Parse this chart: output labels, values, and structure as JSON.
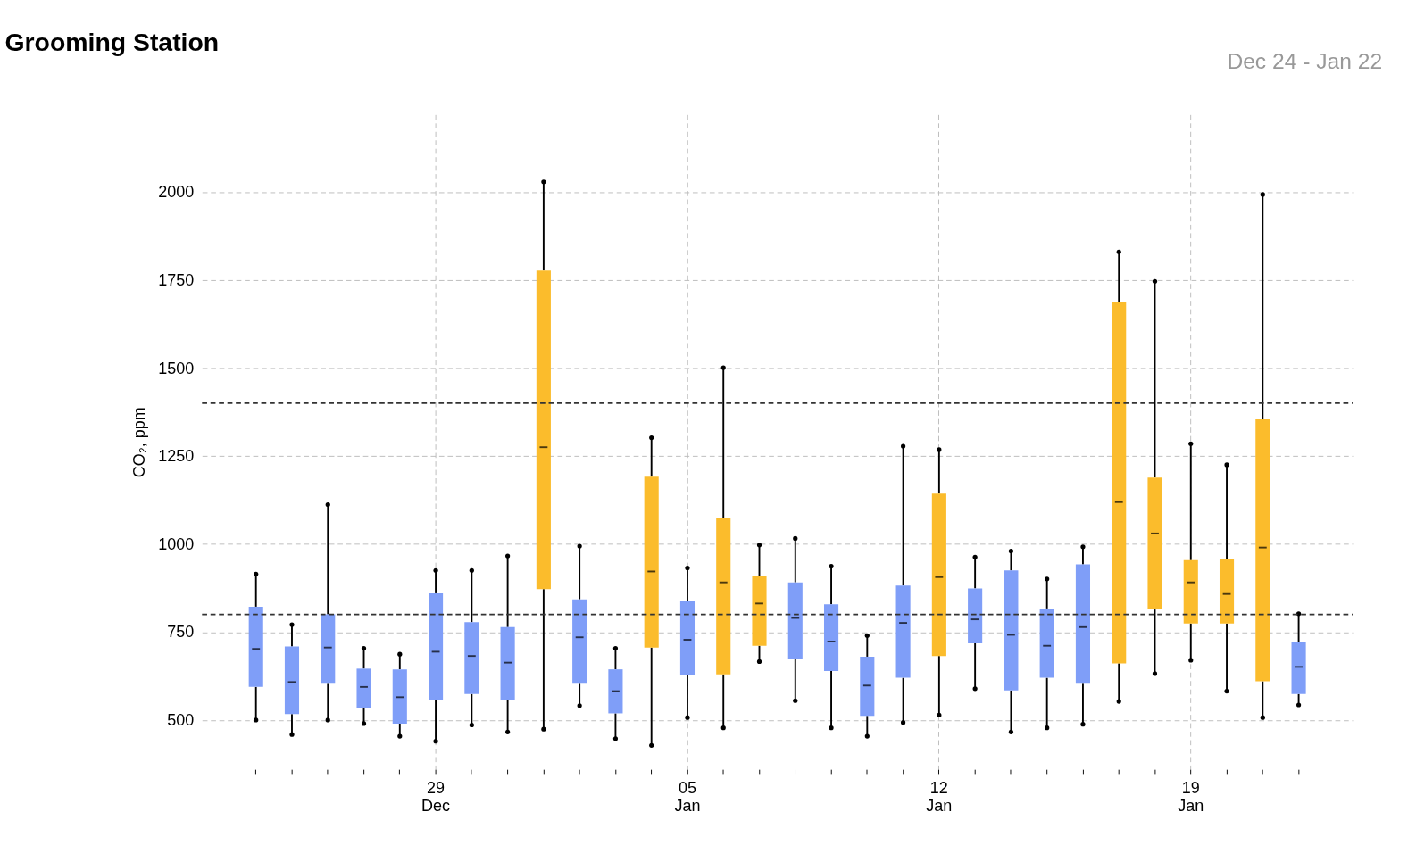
{
  "chart_data": {
    "type": "box",
    "title": "Grooming Station",
    "subtitle": "Dec 24 - Jan 22",
    "ylabel": "CO₂, ppm",
    "categories": [
      null,
      null,
      null,
      null,
      null,
      "29\nDec",
      null,
      null,
      null,
      null,
      null,
      null,
      "05\nJan",
      null,
      null,
      null,
      null,
      null,
      null,
      "12\nJan",
      null,
      null,
      null,
      null,
      null,
      null,
      "19\nJan",
      null,
      null,
      null
    ],
    "boxes": [
      {
        "low": 500,
        "q1": 594,
        "median": 702,
        "q3": 822,
        "high": 915
      },
      {
        "low": 459,
        "q1": 517,
        "median": 608,
        "q3": 709,
        "high": 771
      },
      {
        "low": 500,
        "q1": 603,
        "median": 706,
        "q3": 800,
        "high": 1112
      },
      {
        "low": 490,
        "q1": 534,
        "median": 594,
        "q3": 646,
        "high": 704
      },
      {
        "low": 454,
        "q1": 490,
        "median": 565,
        "q3": 644,
        "high": 687
      },
      {
        "low": 440,
        "q1": 558,
        "median": 694,
        "q3": 860,
        "high": 925
      },
      {
        "low": 486,
        "q1": 574,
        "median": 682,
        "q3": 778,
        "high": 925
      },
      {
        "low": 466,
        "q1": 558,
        "median": 663,
        "q3": 764,
        "high": 966
      },
      {
        "low": 474,
        "q1": 872,
        "median": 1275,
        "q3": 1777,
        "high": 2029
      },
      {
        "low": 541,
        "q1": 603,
        "median": 735,
        "q3": 843,
        "high": 994
      },
      {
        "low": 447,
        "q1": 519,
        "median": 582,
        "q3": 644,
        "high": 704
      },
      {
        "low": 428,
        "q1": 706,
        "median": 922,
        "q3": 1191,
        "high": 1302
      },
      {
        "low": 507,
        "q1": 627,
        "median": 728,
        "q3": 838,
        "high": 932
      },
      {
        "low": 478,
        "q1": 630,
        "median": 891,
        "q3": 1074,
        "high": 1501
      },
      {
        "low": 666,
        "q1": 711,
        "median": 831,
        "q3": 908,
        "high": 997
      },
      {
        "low": 555,
        "q1": 673,
        "median": 790,
        "q3": 891,
        "high": 1016
      },
      {
        "low": 478,
        "q1": 639,
        "median": 723,
        "q3": 829,
        "high": 937
      },
      {
        "low": 454,
        "q1": 512,
        "median": 598,
        "q3": 680,
        "high": 740
      },
      {
        "low": 493,
        "q1": 620,
        "median": 776,
        "q3": 882,
        "high": 1278
      },
      {
        "low": 514,
        "q1": 682,
        "median": 906,
        "q3": 1143,
        "high": 1268
      },
      {
        "low": 589,
        "q1": 718,
        "median": 786,
        "q3": 874,
        "high": 963
      },
      {
        "low": 466,
        "q1": 584,
        "median": 742,
        "q3": 925,
        "high": 980
      },
      {
        "low": 478,
        "q1": 620,
        "median": 711,
        "q3": 817,
        "high": 901
      },
      {
        "low": 488,
        "q1": 603,
        "median": 764,
        "q3": 942,
        "high": 992
      },
      {
        "low": 553,
        "q1": 661,
        "median": 1119,
        "q3": 1688,
        "high": 1830
      },
      {
        "low": 632,
        "q1": 814,
        "median": 1030,
        "q3": 1189,
        "high": 1746
      },
      {
        "low": 670,
        "q1": 774,
        "median": 891,
        "q3": 954,
        "high": 1285
      },
      {
        "low": 582,
        "q1": 774,
        "median": 858,
        "q3": 956,
        "high": 1225
      },
      {
        "low": 507,
        "q1": 610,
        "median": 990,
        "q3": 1354,
        "high": 1993
      },
      {
        "low": 543,
        "q1": 574,
        "median": 651,
        "q3": 721,
        "high": 802
      }
    ],
    "colors": [
      "#7f9ef8",
      "#7f9ef8",
      "#7f9ef8",
      "#7f9ef8",
      "#7f9ef8",
      "#7f9ef8",
      "#7f9ef8",
      "#7f9ef8",
      "#fbbc2c",
      "#7f9ef8",
      "#7f9ef8",
      "#fbbc2c",
      "#7f9ef8",
      "#fbbc2c",
      "#fbbc2c",
      "#7f9ef8",
      "#7f9ef8",
      "#7f9ef8",
      "#7f9ef8",
      "#fbbc2c",
      "#7f9ef8",
      "#7f9ef8",
      "#7f9ef8",
      "#7f9ef8",
      "#fbbc2c",
      "#fbbc2c",
      "#fbbc2c",
      "#fbbc2c",
      "#fbbc2c",
      "#7f9ef8"
    ],
    "ylim": [
      360,
      2220
    ],
    "yticks": [
      500,
      750,
      1000,
      1250,
      1500,
      1750,
      2000
    ],
    "ref_lines": [
      {
        "axis": "y",
        "value": 1400,
        "color": "#333333",
        "line_style": "dashed"
      },
      {
        "axis": "y",
        "value": 800,
        "color": "#333333",
        "line_style": "dashed"
      }
    ],
    "grid": true,
    "marker": "circle"
  }
}
